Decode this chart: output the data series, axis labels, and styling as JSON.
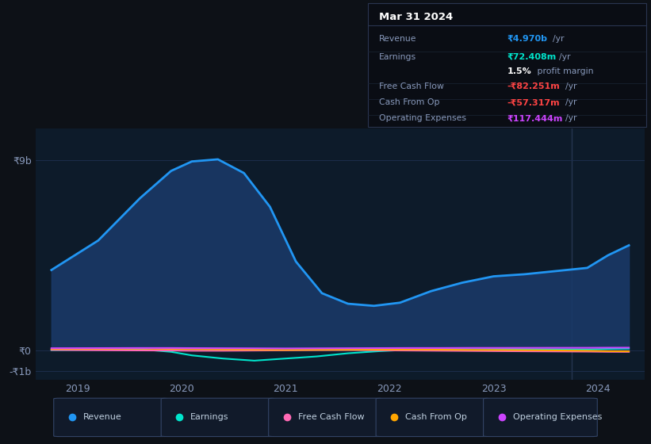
{
  "background_color": "#0d1117",
  "plot_bg_color": "#0d1b2a",
  "grid_color": "#1e3050",
  "title_box": {
    "date": "Mar 31 2024",
    "rows": [
      {
        "label": "Revenue",
        "value": "₹4.970b",
        "unit": "/yr",
        "value_color": "#2196f3"
      },
      {
        "label": "Earnings",
        "value": "₹72.408m",
        "unit": "/yr",
        "value_color": "#00e5cc"
      },
      {
        "label": "",
        "value": "1.5%",
        "unit": " profit margin",
        "value_color": "#ffffff",
        "bold_value": true
      },
      {
        "label": "Free Cash Flow",
        "value": "-₹82.251m",
        "unit": "/yr",
        "value_color": "#ff4444"
      },
      {
        "label": "Cash From Op",
        "value": "-₹57.317m",
        "unit": "/yr",
        "value_color": "#ff4444"
      },
      {
        "label": "Operating Expenses",
        "value": "₹117.444m",
        "unit": "/yr",
        "value_color": "#cc44ff"
      }
    ]
  },
  "ytick_labels": [
    "₹9b",
    "₹0",
    "-₹1b"
  ],
  "ytick_values": [
    9000000000,
    0,
    -1000000000
  ],
  "ylim": [
    -1400000000,
    10500000000
  ],
  "revenue_x": [
    2018.75,
    2019.2,
    2019.6,
    2019.9,
    2020.1,
    2020.35,
    2020.6,
    2020.85,
    2021.1,
    2021.35,
    2021.6,
    2021.85,
    2022.1,
    2022.4,
    2022.7,
    2023.0,
    2023.3,
    2023.6,
    2023.9,
    2024.1,
    2024.3
  ],
  "revenue_y": [
    3800000000,
    5200000000,
    7200000000,
    8500000000,
    8950000000,
    9050000000,
    8400000000,
    6800000000,
    4200000000,
    2700000000,
    2200000000,
    2100000000,
    2250000000,
    2800000000,
    3200000000,
    3500000000,
    3600000000,
    3750000000,
    3900000000,
    4500000000,
    4970000000
  ],
  "revenue_color": "#2196f3",
  "revenue_fill": "#1a3a6a",
  "revenue_fill_alpha": 0.85,
  "revenue_lw": 2.0,
  "earnings_x": [
    2018.75,
    2019.2,
    2019.6,
    2019.9,
    2020.1,
    2020.4,
    2020.7,
    2021.0,
    2021.3,
    2021.6,
    2021.9,
    2022.2,
    2022.5,
    2022.8,
    2023.1,
    2023.5,
    2023.9,
    2024.1,
    2024.3
  ],
  "earnings_y": [
    0,
    20000000,
    40000000,
    -80000000,
    -250000000,
    -400000000,
    -500000000,
    -400000000,
    -300000000,
    -150000000,
    -50000000,
    20000000,
    60000000,
    80000000,
    60000000,
    40000000,
    30000000,
    60000000,
    72408000
  ],
  "earnings_color": "#00e5cc",
  "earnings_lw": 1.5,
  "fcf_x": [
    2018.75,
    2019.2,
    2019.6,
    2019.9,
    2020.1,
    2020.4,
    2020.7,
    2021.0,
    2021.3,
    2021.6,
    2021.9,
    2022.2,
    2022.5,
    2022.8,
    2023.1,
    2023.5,
    2023.9,
    2024.1,
    2024.3
  ],
  "fcf_y": [
    10000000,
    -5000000,
    -15000000,
    -20000000,
    -30000000,
    -30000000,
    -20000000,
    -10000000,
    0,
    5000000,
    -10000000,
    -20000000,
    -30000000,
    -40000000,
    -50000000,
    -60000000,
    -70000000,
    -80000000,
    -82251000
  ],
  "fcf_color": "#ff69b4",
  "fcf_lw": 1.5,
  "cashop_x": [
    2018.75,
    2019.2,
    2019.6,
    2019.9,
    2020.1,
    2020.4,
    2020.7,
    2021.0,
    2021.3,
    2021.6,
    2021.9,
    2022.2,
    2022.5,
    2022.8,
    2023.1,
    2023.5,
    2023.9,
    2024.1,
    2024.3
  ],
  "cashop_y": [
    50000000,
    60000000,
    70000000,
    60000000,
    50000000,
    30000000,
    20000000,
    10000000,
    15000000,
    20000000,
    25000000,
    30000000,
    20000000,
    10000000,
    5000000,
    -10000000,
    -30000000,
    -50000000,
    -57317000
  ],
  "cashop_color": "#ffa500",
  "cashop_lw": 1.5,
  "opex_x": [
    2018.75,
    2019.2,
    2019.6,
    2019.9,
    2020.1,
    2020.4,
    2020.7,
    2021.0,
    2021.3,
    2021.6,
    2021.9,
    2022.2,
    2022.5,
    2022.8,
    2023.1,
    2023.5,
    2023.9,
    2024.1,
    2024.3
  ],
  "opex_y": [
    90000000,
    95000000,
    100000000,
    100000000,
    95000000,
    90000000,
    85000000,
    80000000,
    85000000,
    90000000,
    95000000,
    100000000,
    100000000,
    105000000,
    105000000,
    108000000,
    110000000,
    115000000,
    117444000
  ],
  "opex_color": "#cc44ff",
  "opex_lw": 1.5,
  "vline_x": 2023.75,
  "vline_color": "#263550",
  "xticks": [
    2019,
    2020,
    2021,
    2022,
    2023,
    2024
  ],
  "xlim": [
    2018.6,
    2024.45
  ],
  "legend": [
    {
      "label": "Revenue",
      "color": "#2196f3"
    },
    {
      "label": "Earnings",
      "color": "#00e5cc"
    },
    {
      "label": "Free Cash Flow",
      "color": "#ff69b4"
    },
    {
      "label": "Cash From Op",
      "color": "#ffa500"
    },
    {
      "label": "Operating Expenses",
      "color": "#cc44ff"
    }
  ]
}
